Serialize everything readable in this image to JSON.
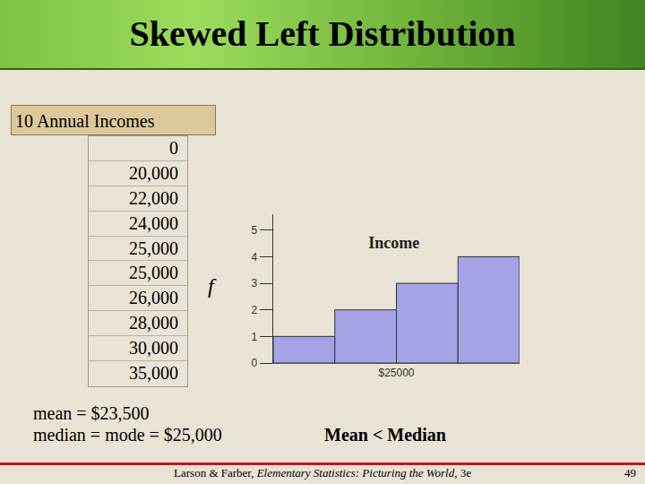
{
  "chart_data": {
    "type": "histogram",
    "title": "Income",
    "bins": [
      10000,
      17500,
      25000,
      32500,
      40000
    ],
    "counts": [
      1,
      2,
      3,
      4
    ],
    "color": "#a3a3e6",
    "xlim": [
      10000,
      40000
    ],
    "xticks": [
      {
        "value": 25000,
        "label": "$25000"
      }
    ],
    "ylim": [
      0,
      5.6
    ],
    "yticks": [
      0,
      1,
      2,
      3,
      4,
      5
    ],
    "y_label": "f",
    "grid": false
  },
  "slide": {
    "title": "Skewed Left Distribution",
    "table": {
      "header": "10 Annual Incomes",
      "rows": [
        "0",
        "20,000",
        "22,000",
        "24,000",
        "25,000",
        "25,000",
        "26,000",
        "28,000",
        "30,000",
        "35,000"
      ]
    },
    "notes": [
      "mean = $23,500",
      "median = mode = $25,000"
    ],
    "comparison": "Mean < Median",
    "footer": {
      "authors": "Larson & Farber, ",
      "book": "Elementary Statistics: Picturing the World",
      "edition": ", 3e"
    },
    "page": "49"
  }
}
